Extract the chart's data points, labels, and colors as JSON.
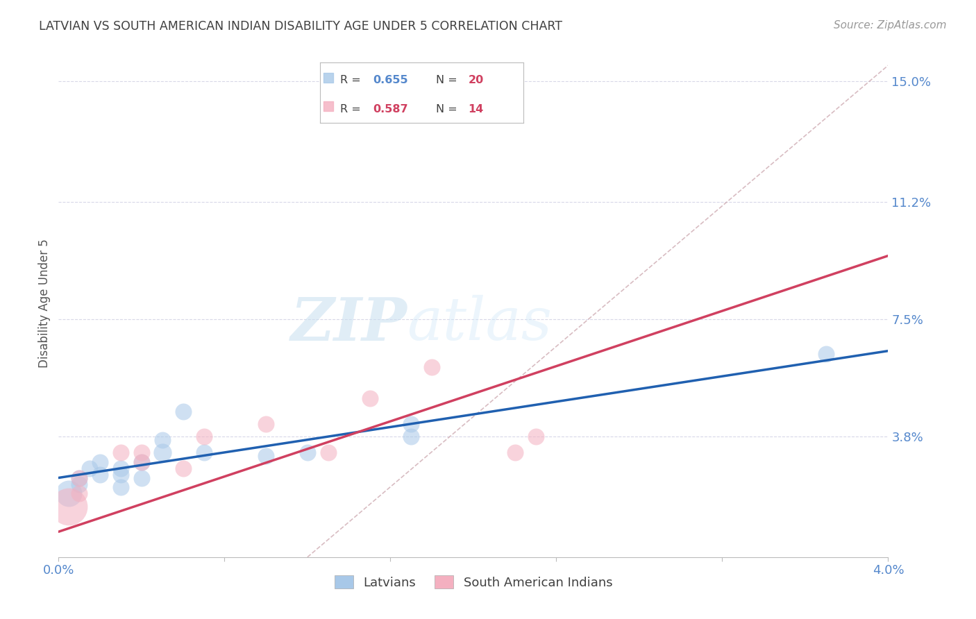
{
  "title": "LATVIAN VS SOUTH AMERICAN INDIAN DISABILITY AGE UNDER 5 CORRELATION CHART",
  "source": "Source: ZipAtlas.com",
  "ylabel": "Disability Age Under 5",
  "watermark_zip": "ZIP",
  "watermark_atlas": "atlas",
  "xmin": 0.0,
  "xmax": 0.04,
  "ymin": 0.0,
  "ymax": 0.16,
  "yticks": [
    0.038,
    0.075,
    0.112,
    0.15
  ],
  "ytick_labels": [
    "3.8%",
    "7.5%",
    "11.2%",
    "15.0%"
  ],
  "xticks": [
    0.0,
    0.008,
    0.016,
    0.024,
    0.032,
    0.04
  ],
  "xtick_labels": [
    "0.0%",
    "",
    "",
    "",
    "",
    "4.0%"
  ],
  "latvian_color": "#a8c8e8",
  "south_american_color": "#f4b0c0",
  "latvian_line_color": "#2060b0",
  "south_american_line_color": "#d04060",
  "dashed_line_color": "#c8a0a8",
  "bg_color": "#ffffff",
  "grid_color": "#d8d8e8",
  "title_color": "#404040",
  "axis_label_color": "#5588cc",
  "legend_r_color": "#5588cc",
  "legend_n_color": "#d04060",
  "latvian_points": [
    [
      0.0005,
      0.02,
      2.5
    ],
    [
      0.001,
      0.023,
      1.0
    ],
    [
      0.001,
      0.025,
      1.0
    ],
    [
      0.0015,
      0.028,
      1.0
    ],
    [
      0.002,
      0.026,
      1.0
    ],
    [
      0.002,
      0.03,
      1.0
    ],
    [
      0.003,
      0.028,
      1.0
    ],
    [
      0.003,
      0.026,
      1.0
    ],
    [
      0.003,
      0.022,
      1.0
    ],
    [
      0.004,
      0.025,
      1.0
    ],
    [
      0.004,
      0.03,
      1.0
    ],
    [
      0.005,
      0.033,
      1.2
    ],
    [
      0.005,
      0.037,
      1.0
    ],
    [
      0.006,
      0.046,
      1.0
    ],
    [
      0.007,
      0.033,
      1.0
    ],
    [
      0.01,
      0.032,
      1.0
    ],
    [
      0.012,
      0.033,
      1.0
    ],
    [
      0.017,
      0.038,
      1.0
    ],
    [
      0.017,
      0.042,
      1.0
    ],
    [
      0.037,
      0.064,
      1.0
    ]
  ],
  "south_american_points": [
    [
      0.0005,
      0.016,
      5.0
    ],
    [
      0.001,
      0.02,
      1.0
    ],
    [
      0.001,
      0.025,
      1.0
    ],
    [
      0.003,
      0.033,
      1.0
    ],
    [
      0.004,
      0.03,
      1.0
    ],
    [
      0.004,
      0.033,
      1.0
    ],
    [
      0.006,
      0.028,
      1.0
    ],
    [
      0.007,
      0.038,
      1.0
    ],
    [
      0.01,
      0.042,
      1.0
    ],
    [
      0.013,
      0.033,
      1.0
    ],
    [
      0.015,
      0.05,
      1.0
    ],
    [
      0.018,
      0.06,
      1.0
    ],
    [
      0.022,
      0.033,
      1.0
    ],
    [
      0.023,
      0.038,
      1.0
    ]
  ],
  "latvian_line": [
    0.0,
    0.025,
    0.04,
    0.065
  ],
  "south_american_line": [
    0.0,
    0.008,
    0.04,
    0.095
  ],
  "dashed_line": [
    0.012,
    0.0,
    0.04,
    0.155
  ]
}
